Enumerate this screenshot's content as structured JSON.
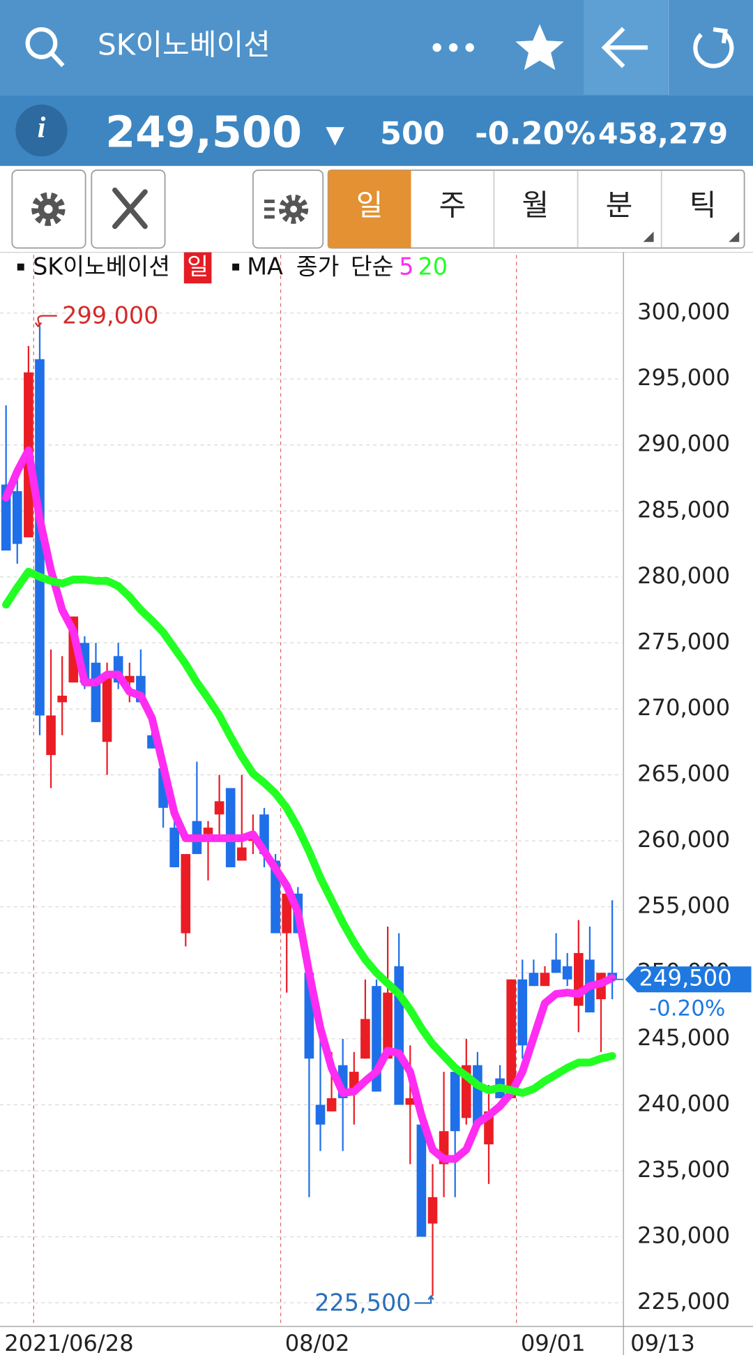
{
  "header": {
    "title": "SK이노베이션",
    "info_icon": "i",
    "price": "249,500",
    "direction": "▼",
    "change": "500",
    "change_pct": "-0.20%",
    "volume": "458,279"
  },
  "tabs": [
    "일",
    "주",
    "월",
    "분",
    "틱"
  ],
  "chart_data": {
    "type": "candlestick",
    "legend": {
      "symbol": "SK이노베이션",
      "period": "일",
      "ma_label": "MA",
      "ma_price": "종가",
      "ma_type": "단순"
    },
    "x_labels": [
      "2021/06/28",
      "08/02",
      "09/01",
      "09/13"
    ],
    "open": [
      287000,
      286500,
      283000,
      296500,
      266500,
      270500,
      272000,
      275000,
      273500,
      267500,
      274000,
      272000,
      272500,
      268000,
      265500,
      261000,
      253000,
      261500,
      260500,
      262000,
      264000,
      258500,
      260000,
      262000,
      258500,
      253000,
      256000,
      250000,
      240000,
      239500,
      243000,
      241000,
      243500,
      249000,
      243500,
      250500,
      240000,
      238500,
      231000,
      235500,
      242500,
      239000,
      243000,
      237000,
      242000,
      240500,
      249500,
      250000,
      249000,
      251000,
      250500,
      247500,
      251000,
      248000,
      250000
    ],
    "high": [
      293000,
      288500,
      297500,
      299000,
      274500,
      274000,
      277000,
      275500,
      275000,
      273500,
      275000,
      273500,
      274500,
      269500,
      266000,
      262000,
      259000,
      266000,
      261500,
      265000,
      264000,
      265000,
      262000,
      262500,
      259000,
      256000,
      256500,
      250000,
      245000,
      244000,
      245000,
      244000,
      249500,
      249500,
      253500,
      253000,
      244500,
      238500,
      235500,
      242500,
      242500,
      245000,
      244000,
      241500,
      243000,
      249500,
      251000,
      251000,
      250500,
      253000,
      251500,
      254000,
      253500,
      250000,
      255500
    ],
    "low": [
      282000,
      281000,
      283000,
      268000,
      264000,
      268000,
      272000,
      271500,
      269000,
      265000,
      271500,
      270500,
      270500,
      267000,
      261000,
      258000,
      252000,
      259000,
      257000,
      260000,
      258000,
      258500,
      259000,
      258000,
      253000,
      248500,
      253000,
      233000,
      236500,
      239500,
      236500,
      238500,
      243500,
      241000,
      243500,
      240000,
      235500,
      230000,
      225500,
      233000,
      233000,
      238500,
      238500,
      234000,
      240500,
      240500,
      243500,
      249000,
      249000,
      250000,
      249000,
      245500,
      247000,
      244000,
      248000
    ],
    "close": [
      282000,
      282500,
      295500,
      269500,
      269500,
      271000,
      277000,
      272000,
      269000,
      272500,
      272000,
      272500,
      270500,
      267000,
      262500,
      258000,
      259000,
      259000,
      261000,
      263000,
      258000,
      259500,
      260500,
      259000,
      253000,
      256000,
      253000,
      243500,
      238500,
      240500,
      240500,
      242500,
      246500,
      241000,
      248500,
      240000,
      240500,
      230000,
      233000,
      238000,
      238000,
      243000,
      238500,
      239500,
      240500,
      249500,
      244500,
      249000,
      250000,
      250000,
      249500,
      251500,
      247000,
      250000,
      249500
    ],
    "up_color": "#ea1d25",
    "down_color": "#1f6fe9",
    "series": [
      {
        "name": "5",
        "color": "#ff2cf2",
        "values": [
          286000,
          288000,
          289600,
          284400,
          280500,
          277500,
          275900,
          272000,
          272000,
          272600,
          272600,
          271300,
          271000,
          269300,
          265700,
          262100,
          260200,
          260200,
          260200,
          260200,
          260200,
          260200,
          260500,
          259200,
          257900,
          256600,
          254600,
          250000,
          245800,
          242800,
          240900,
          241000,
          241800,
          242500,
          244100,
          243900,
          242500,
          239200,
          236600,
          235900,
          235900,
          236600,
          238600,
          239200,
          239900,
          240900,
          242500,
          245100,
          247700,
          248400,
          248500,
          248400,
          249000,
          249200,
          249600
        ]
      },
      {
        "name": "20",
        "color": "#22ff22",
        "values": [
          277900,
          279200,
          280400,
          280000,
          279700,
          279500,
          279800,
          279800,
          279700,
          279700,
          279300,
          278500,
          277500,
          276700,
          275800,
          274600,
          273400,
          272000,
          270800,
          269500,
          267900,
          266400,
          265100,
          264400,
          263600,
          262500,
          261000,
          259200,
          257200,
          255500,
          253800,
          252300,
          251000,
          250000,
          249200,
          248400,
          247200,
          245800,
          244600,
          243700,
          242800,
          242200,
          241500,
          241100,
          241300,
          241100,
          240900,
          241200,
          241800,
          242300,
          242800,
          243200,
          243200,
          243500,
          243700
        ]
      }
    ],
    "ylim": [
      223200,
      304400
    ],
    "yticks": [
      {
        "value": 225000,
        "label": "225,000"
      },
      {
        "value": 230000,
        "label": "230,000"
      },
      {
        "value": 235000,
        "label": "235,000"
      },
      {
        "value": 240000,
        "label": "240,000"
      },
      {
        "value": 245000,
        "label": "245,000"
      },
      {
        "value": 250000,
        "label": "250,000"
      },
      {
        "value": 255000,
        "label": "255,000"
      },
      {
        "value": 260000,
        "label": "260,000"
      },
      {
        "value": 265000,
        "label": "265,000"
      },
      {
        "value": 270000,
        "label": "270,000"
      },
      {
        "value": 275000,
        "label": "275,000"
      },
      {
        "value": 280000,
        "label": "280,000"
      },
      {
        "value": 285000,
        "label": "285,000"
      },
      {
        "value": 290000,
        "label": "290,000"
      },
      {
        "value": 295000,
        "label": "295,000"
      },
      {
        "value": 300000,
        "label": "300,000"
      }
    ],
    "grid": true,
    "annotations": [
      {
        "value": 299000,
        "label": "299,000",
        "color": "#d42a2a"
      },
      {
        "value": 225500,
        "label": "225,500",
        "color": "#2a6fb8"
      }
    ],
    "current": {
      "value": 249500,
      "label": "249,500",
      "change_pct": "-0.20%",
      "color": "#1f78e0"
    }
  }
}
